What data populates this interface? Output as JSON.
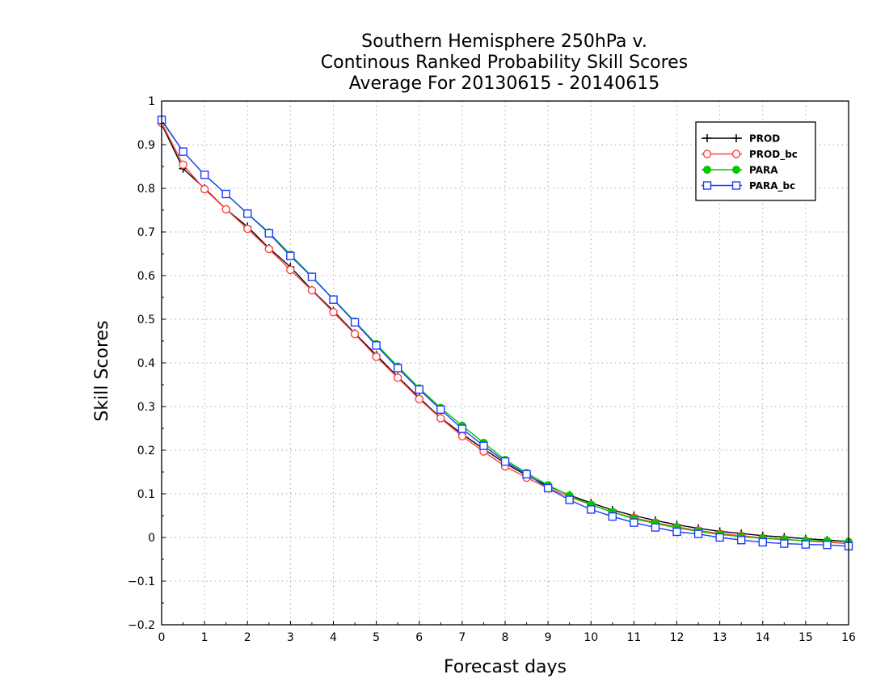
{
  "chart_data": {
    "type": "line",
    "title_lines": [
      "Southern Hemisphere 250hPa v.",
      "Continous Ranked Probability Skill Scores",
      "Average For 20130615 - 20140615"
    ],
    "xlabel": "Forecast days",
    "ylabel": "Skill Scores",
    "xlim": [
      0,
      16
    ],
    "ylim": [
      -0.2,
      1
    ],
    "xticks": [
      "0",
      "1",
      "2",
      "3",
      "4",
      "5",
      "6",
      "7",
      "8",
      "9",
      "10",
      "11",
      "12",
      "13",
      "14",
      "15",
      "16"
    ],
    "yticks": [
      "−0.2",
      "−0.1",
      "0",
      "0.1",
      "0.2",
      "0.3",
      "0.4",
      "0.5",
      "0.6",
      "0.7",
      "0.8",
      "0.9",
      "1"
    ],
    "grid": true,
    "legend_position": "top-right",
    "x": [
      0,
      0.5,
      1,
      1.5,
      2,
      2.5,
      3,
      3.5,
      4,
      4.5,
      5,
      5.5,
      6,
      6.5,
      7,
      7.5,
      8,
      8.5,
      9,
      9.5,
      10,
      10.5,
      11,
      11.5,
      12,
      12.5,
      13,
      13.5,
      14,
      14.5,
      15,
      15.5,
      16
    ],
    "series": [
      {
        "name": "PROD",
        "color": "#000000",
        "marker": "plus",
        "values": [
          0.947,
          0.845,
          0.8,
          0.752,
          0.712,
          0.663,
          0.62,
          0.567,
          0.519,
          0.468,
          0.418,
          0.368,
          0.32,
          0.274,
          0.237,
          0.203,
          0.17,
          0.142,
          0.118,
          0.097,
          0.079,
          0.063,
          0.05,
          0.039,
          0.029,
          0.021,
          0.014,
          0.009,
          0.004,
          0.001,
          -0.003,
          -0.006,
          -0.009
        ]
      },
      {
        "name": "PROD_bc",
        "color": "#ff4040",
        "marker": "circle",
        "values": [
          0.95,
          0.854,
          0.798,
          0.752,
          0.707,
          0.661,
          0.613,
          0.566,
          0.516,
          0.466,
          0.414,
          0.366,
          0.317,
          0.273,
          0.232,
          0.197,
          0.163,
          0.137,
          0.113,
          0.093,
          0.075,
          0.058,
          0.045,
          0.034,
          0.024,
          0.016,
          0.009,
          0.004,
          -0.001,
          -0.004,
          -0.008,
          -0.011,
          -0.014
        ]
      },
      {
        "name": "PARA",
        "color": "#00c800",
        "marker": "filled-circle",
        "values": [
          0.955,
          0.884,
          0.831,
          0.787,
          0.742,
          0.699,
          0.648,
          0.598,
          0.546,
          0.495,
          0.443,
          0.392,
          0.342,
          0.297,
          0.256,
          0.217,
          0.178,
          0.148,
          0.12,
          0.096,
          0.075,
          0.058,
          0.043,
          0.032,
          0.022,
          0.014,
          0.007,
          0.002,
          -0.002,
          -0.005,
          -0.007,
          -0.008,
          -0.01
        ]
      },
      {
        "name": "PARA_bc",
        "color": "#1e3cff",
        "marker": "square",
        "values": [
          0.957,
          0.884,
          0.831,
          0.787,
          0.742,
          0.697,
          0.645,
          0.597,
          0.545,
          0.493,
          0.44,
          0.388,
          0.339,
          0.293,
          0.249,
          0.21,
          0.174,
          0.145,
          0.113,
          0.086,
          0.064,
          0.048,
          0.034,
          0.023,
          0.013,
          0.008,
          0.0,
          -0.006,
          -0.011,
          -0.014,
          -0.016,
          -0.017,
          -0.02
        ]
      }
    ]
  }
}
